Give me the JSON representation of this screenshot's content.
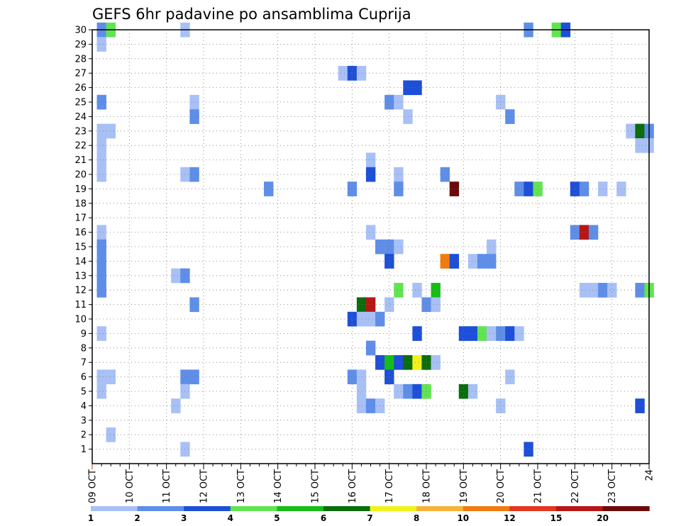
{
  "chart_data": {
    "type": "heatmap",
    "title": "GEFS 6hr padavine po ansamblima Cuprija",
    "x_tick_labels": [
      "09 OCT",
      "10 OCT",
      "11 OCT",
      "12 OCT",
      "13 OCT",
      "14 OCT",
      "15 OCT",
      "16 OCT",
      "17 OCT",
      "18 OCT",
      "19 OCT",
      "20 OCT",
      "21 OCT",
      "22 OCT",
      "23 OCT",
      "24"
    ],
    "y_tick_labels": [
      "1",
      "2",
      "3",
      "4",
      "5",
      "6",
      "7",
      "8",
      "9",
      "10",
      "11",
      "12",
      "13",
      "14",
      "15",
      "16",
      "17",
      "18",
      "19",
      "20",
      "21",
      "22",
      "23",
      "24",
      "25",
      "26",
      "27",
      "28",
      "29",
      "30"
    ],
    "x_unit": "6-hour step from 09 OCT",
    "y_range": [
      0,
      30
    ],
    "x_range": [
      0,
      60
    ],
    "grid": true,
    "legend": {
      "position": "bottom",
      "labels": [
        "1",
        "2",
        "3",
        "4",
        "5",
        "6",
        "7",
        "8",
        "10",
        "12",
        "15",
        "20"
      ],
      "colors": [
        "#a8c0f5",
        "#5e8ee8",
        "#1e4fd8",
        "#62e452",
        "#16bd16",
        "#0b6d0b",
        "#f2f21a",
        "#f7b23a",
        "#f07c10",
        "#e3361e",
        "#b81616",
        "#6e0a0a"
      ]
    },
    "cells": [
      [
        1,
        30,
        2
      ],
      [
        2,
        30,
        4
      ],
      [
        10,
        30,
        1
      ],
      [
        47,
        30,
        2
      ],
      [
        50,
        30,
        4
      ],
      [
        51,
        30,
        3
      ],
      [
        1,
        29,
        1
      ],
      [
        27,
        27,
        1
      ],
      [
        28,
        27,
        3
      ],
      [
        29,
        27,
        1
      ],
      [
        34,
        26,
        3
      ],
      [
        35,
        26,
        3
      ],
      [
        1,
        25,
        2
      ],
      [
        11,
        25,
        1
      ],
      [
        32,
        25,
        2
      ],
      [
        33,
        25,
        1
      ],
      [
        44,
        25,
        1
      ],
      [
        11,
        24,
        2
      ],
      [
        34,
        24,
        1
      ],
      [
        45,
        24,
        2
      ],
      [
        1,
        23,
        1
      ],
      [
        2,
        23,
        1
      ],
      [
        58,
        23,
        1
      ],
      [
        59,
        23,
        6
      ],
      [
        60,
        23,
        2
      ],
      [
        1,
        22,
        1
      ],
      [
        59,
        22,
        1
      ],
      [
        60,
        22,
        1
      ],
      [
        1,
        21,
        1
      ],
      [
        30,
        21,
        1
      ],
      [
        1,
        20,
        1
      ],
      [
        10,
        20,
        1
      ],
      [
        11,
        20,
        2
      ],
      [
        30,
        20,
        3
      ],
      [
        33,
        20,
        1
      ],
      [
        38,
        20,
        2
      ],
      [
        19,
        19,
        2
      ],
      [
        28,
        19,
        2
      ],
      [
        33,
        19,
        2
      ],
      [
        39,
        19,
        12
      ],
      [
        46,
        19,
        2
      ],
      [
        47,
        19,
        3
      ],
      [
        48,
        19,
        4
      ],
      [
        52,
        19,
        3
      ],
      [
        53,
        19,
        2
      ],
      [
        55,
        19,
        1
      ],
      [
        57,
        19,
        1
      ],
      [
        1,
        16,
        1
      ],
      [
        30,
        16,
        1
      ],
      [
        52,
        16,
        2
      ],
      [
        53,
        16,
        11
      ],
      [
        54,
        16,
        2
      ],
      [
        1,
        15,
        2
      ],
      [
        31,
        15,
        2
      ],
      [
        32,
        15,
        2
      ],
      [
        33,
        15,
        1
      ],
      [
        43,
        15,
        1
      ],
      [
        1,
        14,
        2
      ],
      [
        32,
        14,
        3
      ],
      [
        38,
        14,
        9
      ],
      [
        39,
        14,
        3
      ],
      [
        41,
        14,
        1
      ],
      [
        42,
        14,
        2
      ],
      [
        43,
        14,
        2
      ],
      [
        1,
        13,
        2
      ],
      [
        9,
        13,
        1
      ],
      [
        10,
        13,
        2
      ],
      [
        1,
        12,
        2
      ],
      [
        33,
        12,
        4
      ],
      [
        35,
        12,
        1
      ],
      [
        37,
        12,
        5
      ],
      [
        53,
        12,
        1
      ],
      [
        54,
        12,
        1
      ],
      [
        55,
        12,
        2
      ],
      [
        56,
        12,
        1
      ],
      [
        59,
        12,
        2
      ],
      [
        60,
        12,
        4
      ],
      [
        11,
        11,
        2
      ],
      [
        29,
        11,
        6
      ],
      [
        30,
        11,
        11
      ],
      [
        32,
        11,
        1
      ],
      [
        36,
        11,
        2
      ],
      [
        37,
        11,
        1
      ],
      [
        28,
        10,
        3
      ],
      [
        29,
        10,
        1
      ],
      [
        30,
        10,
        1
      ],
      [
        31,
        10,
        2
      ],
      [
        1,
        9,
        1
      ],
      [
        35,
        9,
        3
      ],
      [
        40,
        9,
        3
      ],
      [
        41,
        9,
        3
      ],
      [
        42,
        9,
        4
      ],
      [
        43,
        9,
        1
      ],
      [
        44,
        9,
        2
      ],
      [
        45,
        9,
        3
      ],
      [
        46,
        9,
        1
      ],
      [
        30,
        8,
        2
      ],
      [
        31,
        7,
        3
      ],
      [
        32,
        7,
        5
      ],
      [
        33,
        7,
        3
      ],
      [
        34,
        7,
        6
      ],
      [
        35,
        7,
        7
      ],
      [
        36,
        7,
        6
      ],
      [
        37,
        7,
        1
      ],
      [
        1,
        6,
        1
      ],
      [
        2,
        6,
        1
      ],
      [
        10,
        6,
        2
      ],
      [
        11,
        6,
        2
      ],
      [
        28,
        6,
        2
      ],
      [
        29,
        6,
        1
      ],
      [
        32,
        6,
        3
      ],
      [
        45,
        6,
        1
      ],
      [
        1,
        5,
        1
      ],
      [
        10,
        5,
        1
      ],
      [
        29,
        5,
        1
      ],
      [
        33,
        5,
        1
      ],
      [
        34,
        5,
        2
      ],
      [
        35,
        5,
        3
      ],
      [
        36,
        5,
        4
      ],
      [
        40,
        5,
        6
      ],
      [
        41,
        5,
        1
      ],
      [
        9,
        4,
        1
      ],
      [
        29,
        4,
        1
      ],
      [
        30,
        4,
        2
      ],
      [
        31,
        4,
        1
      ],
      [
        44,
        4,
        1
      ],
      [
        59,
        4,
        3
      ],
      [
        2,
        2,
        1
      ],
      [
        10,
        1,
        1
      ],
      [
        47,
        1,
        3
      ]
    ]
  }
}
